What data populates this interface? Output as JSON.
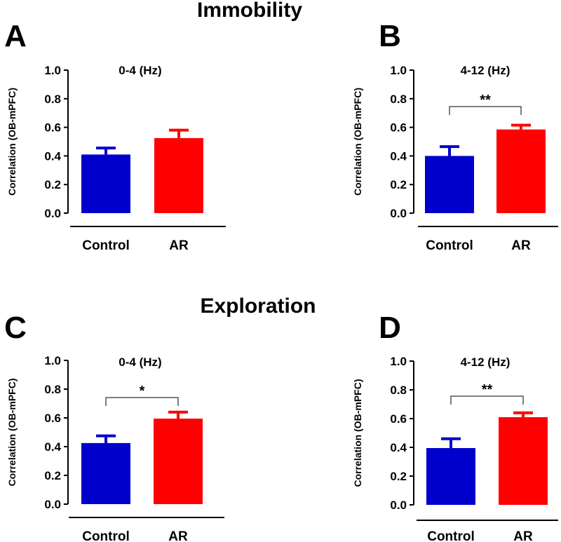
{
  "figure": {
    "sections": [
      {
        "title": "Immobility"
      },
      {
        "title": "Exploration"
      }
    ]
  },
  "colors": {
    "control": "#0000CC",
    "ar": "#FF0000",
    "axis": "#000000",
    "bracket": "#555555"
  },
  "chart_data": [
    {
      "type": "bar",
      "panel": "A",
      "title": "0-4 (Hz)",
      "ylabel": "Correlation (OB-mPFC)",
      "xlabel": "",
      "categories": [
        "Control",
        "AR"
      ],
      "values": [
        0.41,
        0.525
      ],
      "errors": [
        0.045,
        0.055
      ],
      "ylim": [
        0,
        1.0
      ],
      "yticks": [
        "0.0",
        "0.2",
        "0.4",
        "0.6",
        "0.8",
        "1.0"
      ],
      "significance": ""
    },
    {
      "type": "bar",
      "panel": "B",
      "title": "4-12 (Hz)",
      "ylabel": "Correlation (OB-mPFC)",
      "xlabel": "",
      "categories": [
        "Control",
        "AR"
      ],
      "values": [
        0.4,
        0.585
      ],
      "errors": [
        0.065,
        0.03
      ],
      "ylim": [
        0,
        1.0
      ],
      "yticks": [
        "0.0",
        "0.2",
        "0.4",
        "0.6",
        "0.8",
        "1.0"
      ],
      "significance": "**"
    },
    {
      "type": "bar",
      "panel": "C",
      "title": "0-4 (Hz)",
      "ylabel": "Correlation (OB-mPFC)",
      "xlabel": "",
      "categories": [
        "Control",
        "AR"
      ],
      "values": [
        0.425,
        0.595
      ],
      "errors": [
        0.05,
        0.045
      ],
      "ylim": [
        0,
        1.0
      ],
      "yticks": [
        "0.0",
        "0.2",
        "0.4",
        "0.6",
        "0.8",
        "1.0"
      ],
      "significance": "*"
    },
    {
      "type": "bar",
      "panel": "D",
      "title": "4-12 (Hz)",
      "ylabel": "Correlation (OB-mPFC)",
      "xlabel": "",
      "categories": [
        "Control",
        "AR"
      ],
      "values": [
        0.395,
        0.61
      ],
      "errors": [
        0.065,
        0.03
      ],
      "ylim": [
        0,
        1.0
      ],
      "yticks": [
        "0.0",
        "0.2",
        "0.4",
        "0.6",
        "0.8",
        "1.0"
      ],
      "significance": "**"
    }
  ]
}
